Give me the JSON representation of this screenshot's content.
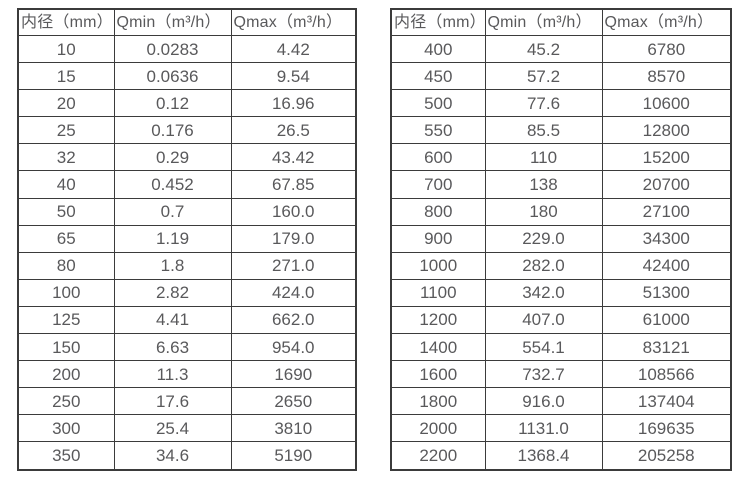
{
  "page": {
    "background_color": "#ffffff",
    "border_color": "#3b3b3b",
    "text_color": "#59595b"
  },
  "tables": [
    {
      "name": "flow-range-table-dn10-350",
      "headers": [
        "内径（mm）",
        "Qmin（m³/h）",
        "Qmax（m³/h）"
      ],
      "rows": [
        [
          "10",
          "0.0283",
          "4.42"
        ],
        [
          "15",
          "0.0636",
          "9.54"
        ],
        [
          "20",
          "0.12",
          "16.96"
        ],
        [
          "25",
          "0.176",
          "26.5"
        ],
        [
          "32",
          "0.29",
          "43.42"
        ],
        [
          "40",
          "0.452",
          "67.85"
        ],
        [
          "50",
          "0.7",
          "160.0"
        ],
        [
          "65",
          "1.19",
          "179.0"
        ],
        [
          "80",
          "1.8",
          "271.0"
        ],
        [
          "100",
          "2.82",
          "424.0"
        ],
        [
          "125",
          "4.41",
          "662.0"
        ],
        [
          "150",
          "6.63",
          "954.0"
        ],
        [
          "200",
          "11.3",
          "1690"
        ],
        [
          "250",
          "17.6",
          "2650"
        ],
        [
          "300",
          "25.4",
          "3810"
        ],
        [
          "350",
          "34.6",
          "5190"
        ]
      ]
    },
    {
      "name": "flow-range-table-dn400-2200",
      "headers": [
        "内径（mm）",
        "Qmin（m³/h）",
        "Qmax（m³/h）"
      ],
      "rows": [
        [
          "400",
          "45.2",
          "6780"
        ],
        [
          "450",
          "57.2",
          "8570"
        ],
        [
          "500",
          "77.6",
          "10600"
        ],
        [
          "550",
          "85.5",
          "12800"
        ],
        [
          "600",
          "110",
          "15200"
        ],
        [
          "700",
          "138",
          "20700"
        ],
        [
          "800",
          "180",
          "27100"
        ],
        [
          "900",
          "229.0",
          "34300"
        ],
        [
          "1000",
          "282.0",
          "42400"
        ],
        [
          "1100",
          "342.0",
          "51300"
        ],
        [
          "1200",
          "407.0",
          "61000"
        ],
        [
          "1400",
          "554.1",
          "83121"
        ],
        [
          "1600",
          "732.7",
          "108566"
        ],
        [
          "1800",
          "916.0",
          "137404"
        ],
        [
          "2000",
          "1131.0",
          "169635"
        ],
        [
          "2200",
          "1368.4",
          "205258"
        ]
      ]
    }
  ]
}
